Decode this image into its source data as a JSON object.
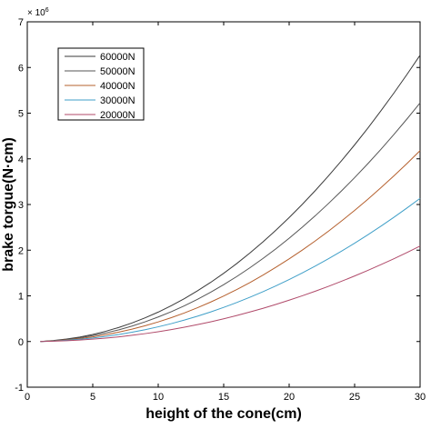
{
  "chart_data": {
    "type": "line",
    "title": "",
    "xlabel": "height of the cone(cm)",
    "ylabel": "brake torgue(N·cm)",
    "y_multiplier_label": "× 10",
    "y_multiplier_exponent": "6",
    "xlim": [
      0,
      30
    ],
    "ylim": [
      -1,
      7
    ],
    "xticks": [
      0,
      5,
      10,
      15,
      20,
      25,
      30
    ],
    "yticks": [
      -1,
      0,
      1,
      2,
      3,
      4,
      5,
      6,
      7
    ],
    "grid": false,
    "legend_position": "top-left",
    "x": [
      1,
      2,
      3,
      4,
      5,
      6,
      7,
      8,
      9,
      10,
      11,
      12,
      13,
      14,
      15,
      16,
      17,
      18,
      19,
      20,
      21,
      22,
      23,
      24,
      25,
      26,
      27,
      28,
      29,
      30
    ],
    "series": [
      {
        "name": "60000N",
        "color": "#3a3a3a",
        "values": [
          0.0,
          0.022,
          0.054,
          0.098,
          0.155,
          0.225,
          0.309,
          0.407,
          0.518,
          0.644,
          0.784,
          0.94,
          1.11,
          1.294,
          1.494,
          1.708,
          1.937,
          2.181,
          2.44,
          2.714,
          3.003,
          3.306,
          3.625,
          3.958,
          4.306,
          4.669,
          5.048,
          5.44,
          5.848,
          6.27
        ]
      },
      {
        "name": "50000N",
        "color": "#555555",
        "values": [
          0.0,
          0.018,
          0.045,
          0.082,
          0.129,
          0.188,
          0.257,
          0.339,
          0.432,
          0.537,
          0.653,
          0.783,
          0.925,
          1.078,
          1.245,
          1.423,
          1.614,
          1.818,
          2.033,
          2.262,
          2.502,
          2.755,
          3.021,
          3.298,
          3.588,
          3.891,
          4.206,
          4.533,
          4.873,
          5.225
        ]
      },
      {
        "name": "40000N",
        "color": "#b5602e",
        "values": [
          0.0,
          0.015,
          0.036,
          0.065,
          0.103,
          0.15,
          0.206,
          0.271,
          0.345,
          0.429,
          0.523,
          0.626,
          0.74,
          0.863,
          0.996,
          1.138,
          1.291,
          1.454,
          1.627,
          1.809,
          2.002,
          2.204,
          2.416,
          2.639,
          2.871,
          3.113,
          3.365,
          3.627,
          3.898,
          4.18
        ]
      },
      {
        "name": "30000N",
        "color": "#3f9fc8",
        "values": [
          0.0,
          0.011,
          0.027,
          0.049,
          0.077,
          0.112,
          0.154,
          0.203,
          0.259,
          0.322,
          0.392,
          0.47,
          0.555,
          0.647,
          0.747,
          0.854,
          0.969,
          1.091,
          1.22,
          1.357,
          1.501,
          1.653,
          1.812,
          1.979,
          2.153,
          2.335,
          2.524,
          2.72,
          2.924,
          3.135
        ]
      },
      {
        "name": "20000N",
        "color": "#b04a6a",
        "values": [
          0.0,
          0.007,
          0.018,
          0.033,
          0.052,
          0.075,
          0.103,
          0.136,
          0.173,
          0.215,
          0.261,
          0.313,
          0.37,
          0.431,
          0.498,
          0.569,
          0.646,
          0.727,
          0.813,
          0.905,
          1.001,
          1.102,
          1.208,
          1.319,
          1.435,
          1.556,
          1.683,
          1.813,
          1.949,
          2.09
        ]
      }
    ]
  }
}
